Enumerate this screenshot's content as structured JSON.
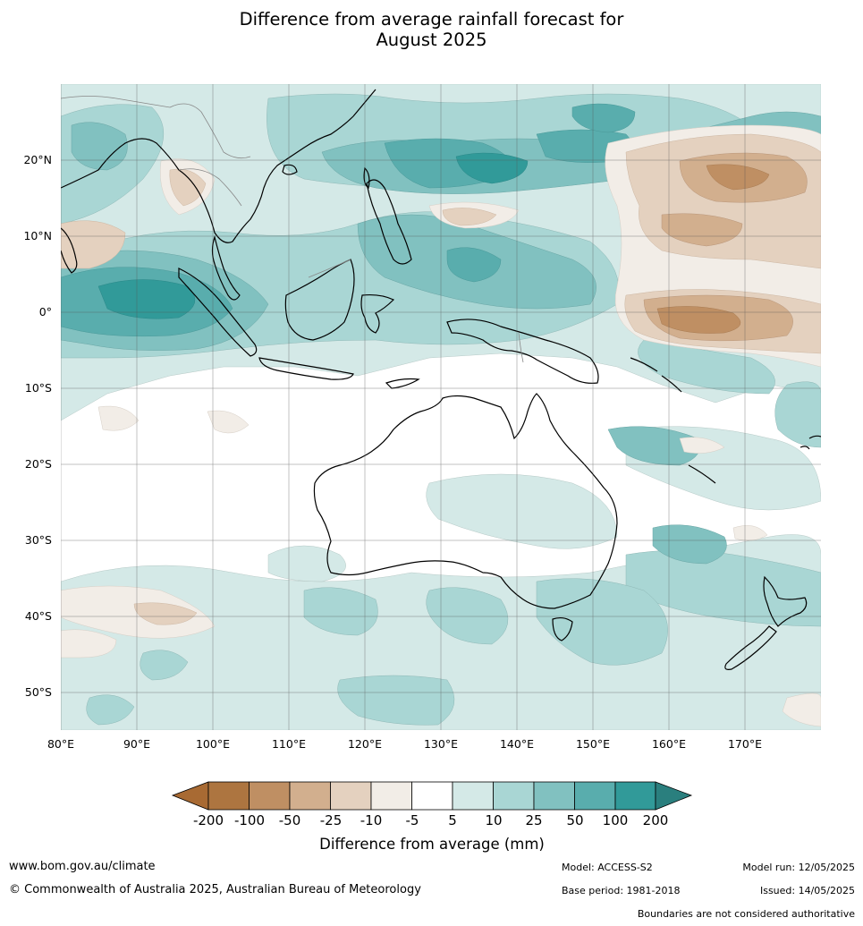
{
  "title": {
    "line1": "Difference from average rainfall forecast for",
    "line2": "August 2025"
  },
  "map": {
    "lon_labels": [
      "80°E",
      "90°E",
      "100°E",
      "110°E",
      "120°E",
      "130°E",
      "140°E",
      "150°E",
      "160°E",
      "170°E"
    ],
    "lat_labels": [
      "20°N",
      "10°N",
      "0°",
      "10°S",
      "20°S",
      "30°S",
      "40°S",
      "50°S"
    ],
    "region": "Indo-Pacific and Australia"
  },
  "colors": {
    "dry": [
      "#a86a33",
      "#ad7540",
      "#bf8f63",
      "#d2af8e",
      "#e4d1bf",
      "#f2ede7"
    ],
    "neutral": "#ffffff",
    "wet": [
      "#d4e9e7",
      "#a9d6d4",
      "#81c1c0",
      "#59adad",
      "#319a99",
      "#2a7f7e"
    ]
  },
  "legend": {
    "title": "Difference from average (mm)",
    "ticks": [
      "-200",
      "-100",
      "-50",
      "-25",
      "-10",
      "-5",
      "5",
      "10",
      "25",
      "50",
      "100",
      "200"
    ]
  },
  "footer": {
    "url": "www.bom.gov.au/climate",
    "copyright": "© Commonwealth of Australia 2025, Australian Bureau of Meteorology",
    "model": "Model: ACCESS-S2",
    "base_period": "Base period: 1981-2018",
    "model_run": "Model run: 12/05/2025",
    "issued": "Issued: 14/05/2025",
    "boundaries": "Boundaries are not considered authoritative"
  }
}
